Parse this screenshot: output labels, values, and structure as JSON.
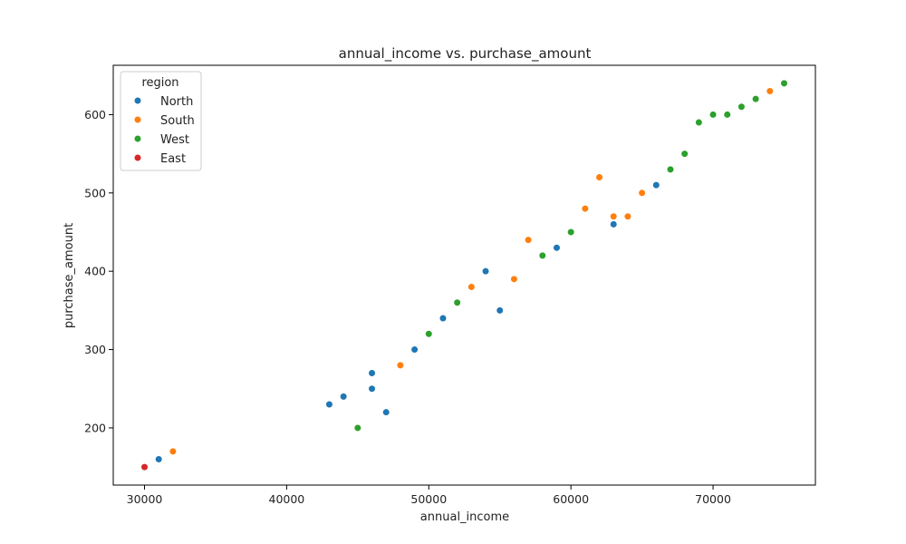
{
  "chart_data": {
    "type": "scatter",
    "title": "annual_income vs. purchase_amount",
    "xlabel": "annual_income",
    "ylabel": "purchase_amount",
    "xlim": [
      27800,
      77200
    ],
    "ylim": [
      127,
      663
    ],
    "xticks": [
      30000,
      40000,
      50000,
      60000,
      70000
    ],
    "yticks": [
      200,
      300,
      400,
      500,
      600
    ],
    "grid": false,
    "legend": {
      "title": "region",
      "position": "top-left"
    },
    "series": [
      {
        "name": "North",
        "color": "#1f77b4",
        "points": [
          [
            31000,
            160
          ],
          [
            43000,
            230
          ],
          [
            44000,
            240
          ],
          [
            46000,
            270
          ],
          [
            46000,
            250
          ],
          [
            47000,
            220
          ],
          [
            49000,
            300
          ],
          [
            51000,
            340
          ],
          [
            54000,
            400
          ],
          [
            55000,
            350
          ],
          [
            59000,
            430
          ],
          [
            63000,
            460
          ],
          [
            66000,
            510
          ]
        ]
      },
      {
        "name": "South",
        "color": "#ff7f0e",
        "points": [
          [
            32000,
            170
          ],
          [
            48000,
            280
          ],
          [
            53000,
            380
          ],
          [
            56000,
            390
          ],
          [
            57000,
            440
          ],
          [
            61000,
            480
          ],
          [
            62000,
            520
          ],
          [
            63000,
            470
          ],
          [
            64000,
            470
          ],
          [
            65000,
            500
          ],
          [
            74000,
            630
          ]
        ]
      },
      {
        "name": "West",
        "color": "#2ca02c",
        "points": [
          [
            45000,
            200
          ],
          [
            50000,
            320
          ],
          [
            52000,
            360
          ],
          [
            58000,
            420
          ],
          [
            60000,
            450
          ],
          [
            67000,
            530
          ],
          [
            68000,
            550
          ],
          [
            69000,
            590
          ],
          [
            70000,
            600
          ],
          [
            71000,
            600
          ],
          [
            72000,
            610
          ],
          [
            73000,
            620
          ],
          [
            75000,
            640
          ]
        ]
      },
      {
        "name": "East",
        "color": "#d62728",
        "points": [
          [
            30000,
            150
          ]
        ]
      }
    ]
  }
}
